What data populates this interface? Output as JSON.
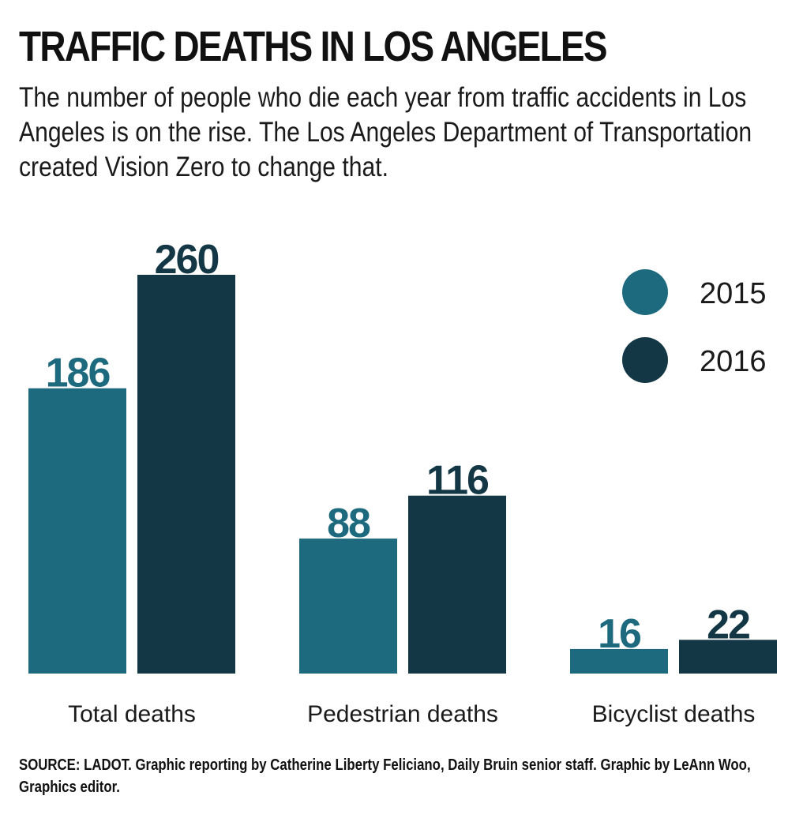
{
  "title": "TRAFFIC DEATHS IN LOS ANGELES",
  "subtitle": "The number of people who die each year from traffic accidents in Los Angeles is on the rise. The Los Angeles Department of Transportation created Vision Zero to change that.",
  "source": "SOURCE: LADOT. Graphic reporting by Catherine Liberty Feliciano, Daily Bruin senior staff. Graphic by LeAnn Woo, Graphics editor.",
  "colors": {
    "series_2015": "#1d6a7f",
    "series_2016": "#143746"
  },
  "chart_data": {
    "type": "bar",
    "title": "TRAFFIC DEATHS IN LOS ANGELES",
    "categories": [
      "Total deaths",
      "Pedestrian deaths",
      "Bicyclist deaths"
    ],
    "series": [
      {
        "name": "2015",
        "values": [
          186,
          88,
          16
        ]
      },
      {
        "name": "2016",
        "values": [
          260,
          116,
          22
        ]
      }
    ],
    "xlabel": "",
    "ylabel": "",
    "ylim": [
      0,
      260
    ],
    "legend": "top-right",
    "grid": false
  }
}
